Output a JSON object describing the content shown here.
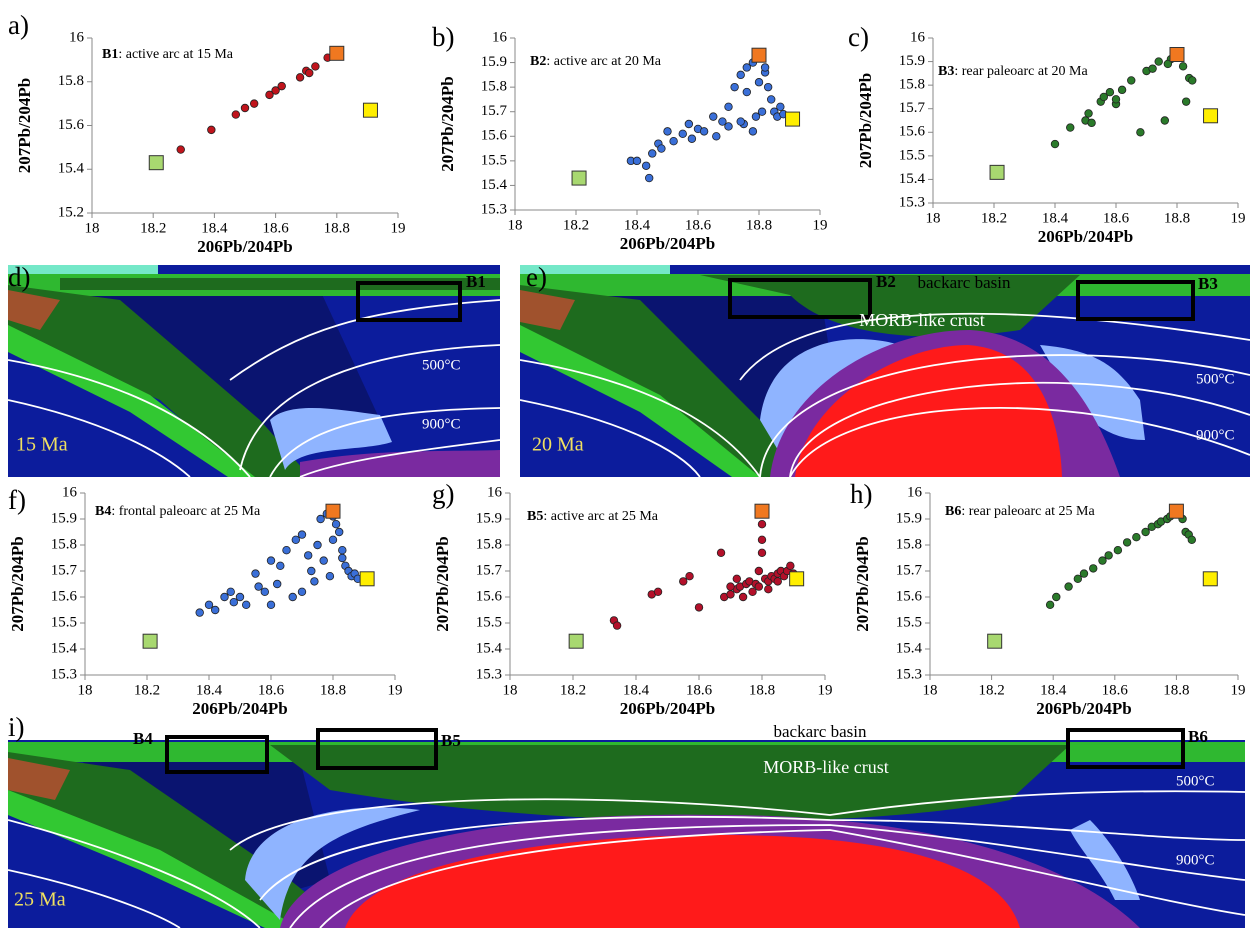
{
  "chart_data": [
    {
      "type": "scatter",
      "panel": "a)",
      "annotation": {
        "bold": "B1",
        "text": ": active arc at 15 Ma"
      },
      "x_label": "206Pb/204Pb",
      "y_label": "207Pb/204Pb",
      "xlim": [
        18,
        19
      ],
      "xticks": [
        18,
        18.2,
        18.4,
        18.6,
        18.8,
        19
      ],
      "ylim": [
        15.2,
        16
      ],
      "yticks": [
        15.2,
        15.4,
        15.6,
        15.8,
        16
      ],
      "series": [
        {
          "color": "#c0141c",
          "marker": "circle",
          "x": [
            18.29,
            18.39,
            18.47,
            18.5,
            18.53,
            18.58,
            18.6,
            18.62,
            18.68,
            18.7,
            18.71,
            18.73,
            18.77,
            18.79
          ],
          "values": [
            15.49,
            15.58,
            15.65,
            15.68,
            15.7,
            15.74,
            15.76,
            15.78,
            15.82,
            15.85,
            15.84,
            15.87,
            15.91,
            15.93
          ]
        },
        {
          "color": "#a8d870",
          "marker": "square",
          "x": [
            18.21
          ],
          "values": [
            15.43
          ]
        },
        {
          "color": "#ffee00",
          "marker": "square",
          "x": [
            18.91
          ],
          "values": [
            15.67
          ]
        },
        {
          "color": "#f07820",
          "marker": "square",
          "x": [
            18.8
          ],
          "values": [
            15.93
          ]
        }
      ]
    },
    {
      "type": "scatter",
      "panel": "b)",
      "annotation": {
        "bold": "B2",
        "text": ": active arc at 20 Ma"
      },
      "x_label": "206Pb/204Pb",
      "y_label": "207Pb/204Pb",
      "xlim": [
        18,
        19
      ],
      "xticks": [
        18,
        18.2,
        18.4,
        18.6,
        18.8,
        19
      ],
      "ylim": [
        15.3,
        16
      ],
      "yticks": [
        15.3,
        15.4,
        15.5,
        15.6,
        15.7,
        15.8,
        15.9,
        16
      ],
      "series": [
        {
          "color": "#3a6fd8",
          "marker": "circle",
          "x": [
            18.38,
            18.4,
            18.43,
            18.44,
            18.45,
            18.47,
            18.5,
            18.52,
            18.55,
            18.57,
            18.6,
            18.62,
            18.65,
            18.68,
            18.7,
            18.72,
            18.74,
            18.75,
            18.76,
            18.78,
            18.79,
            18.8,
            18.81,
            18.82,
            18.83,
            18.84,
            18.85,
            18.86,
            18.87,
            18.88,
            18.9,
            18.78,
            18.76,
            18.74,
            18.82,
            18.8,
            18.7,
            18.66,
            18.58,
            18.48
          ],
          "values": [
            15.5,
            15.5,
            15.48,
            15.43,
            15.53,
            15.57,
            15.62,
            15.58,
            15.61,
            15.65,
            15.63,
            15.62,
            15.68,
            15.66,
            15.72,
            15.8,
            15.85,
            15.65,
            15.88,
            15.9,
            15.68,
            15.92,
            15.7,
            15.86,
            15.8,
            15.75,
            15.7,
            15.68,
            15.72,
            15.69,
            15.68,
            15.62,
            15.78,
            15.66,
            15.88,
            15.82,
            15.64,
            15.6,
            15.59,
            15.55
          ]
        },
        {
          "color": "#a8d870",
          "marker": "square",
          "x": [
            18.21
          ],
          "values": [
            15.43
          ]
        },
        {
          "color": "#ffee00",
          "marker": "square",
          "x": [
            18.91
          ],
          "values": [
            15.67
          ]
        },
        {
          "color": "#f07820",
          "marker": "square",
          "x": [
            18.8
          ],
          "values": [
            15.93
          ]
        }
      ]
    },
    {
      "type": "scatter",
      "panel": "c)",
      "annotation": {
        "bold": "B3",
        "text": ": rear paleoarc at 20 Ma"
      },
      "x_label": "206Pb/204Pb",
      "y_label": "207Pb/204Pb",
      "xlim": [
        18,
        19
      ],
      "xticks": [
        18,
        18.2,
        18.4,
        18.6,
        18.8,
        19
      ],
      "ylim": [
        15.3,
        16
      ],
      "yticks": [
        15.3,
        15.4,
        15.5,
        15.6,
        15.7,
        15.8,
        15.9,
        16
      ],
      "series": [
        {
          "color": "#2a7a2a",
          "marker": "circle",
          "x": [
            18.4,
            18.45,
            18.5,
            18.51,
            18.52,
            18.55,
            18.56,
            18.58,
            18.6,
            18.62,
            18.65,
            18.68,
            18.7,
            18.72,
            18.74,
            18.76,
            18.78,
            18.8,
            18.81,
            18.82,
            18.84,
            18.85,
            18.77,
            18.83,
            18.6
          ],
          "values": [
            15.55,
            15.62,
            15.65,
            15.68,
            15.64,
            15.73,
            15.75,
            15.77,
            15.72,
            15.78,
            15.82,
            15.6,
            15.86,
            15.87,
            15.9,
            15.65,
            15.91,
            15.93,
            15.92,
            15.88,
            15.83,
            15.82,
            15.89,
            15.73,
            15.74
          ]
        },
        {
          "color": "#a8d870",
          "marker": "square",
          "x": [
            18.21
          ],
          "values": [
            15.43
          ]
        },
        {
          "color": "#ffee00",
          "marker": "square",
          "x": [
            18.91
          ],
          "values": [
            15.67
          ]
        },
        {
          "color": "#f07820",
          "marker": "square",
          "x": [
            18.8
          ],
          "values": [
            15.93
          ]
        }
      ]
    },
    {
      "type": "scatter",
      "panel": "f)",
      "annotation": {
        "bold": "B4",
        "text": ": frontal paleoarc at 25  Ma"
      },
      "x_label": "206Pb/204Pb",
      "y_label": "207Pb/204Pb",
      "xlim": [
        18,
        19
      ],
      "xticks": [
        18,
        18.2,
        18.4,
        18.6,
        18.8,
        19
      ],
      "ylim": [
        15.3,
        16
      ],
      "yticks": [
        15.3,
        15.4,
        15.5,
        15.6,
        15.7,
        15.8,
        15.9,
        16
      ],
      "series": [
        {
          "color": "#3a6fd8",
          "marker": "circle",
          "x": [
            18.37,
            18.4,
            18.42,
            18.45,
            18.47,
            18.48,
            18.5,
            18.52,
            18.55,
            18.58,
            18.6,
            18.62,
            18.63,
            18.65,
            18.68,
            18.7,
            18.7,
            18.72,
            18.74,
            18.75,
            18.76,
            18.78,
            18.79,
            18.8,
            18.81,
            18.82,
            18.83,
            18.84,
            18.85,
            18.86,
            18.87,
            18.88,
            18.9,
            18.77,
            18.73,
            18.67,
            18.6,
            18.56,
            18.8,
            18.83
          ],
          "values": [
            15.54,
            15.57,
            15.55,
            15.6,
            15.62,
            15.58,
            15.6,
            15.57,
            15.69,
            15.62,
            15.74,
            15.65,
            15.72,
            15.78,
            15.82,
            15.62,
            15.84,
            15.76,
            15.66,
            15.8,
            15.9,
            15.92,
            15.68,
            15.91,
            15.88,
            15.85,
            15.78,
            15.72,
            15.7,
            15.68,
            15.69,
            15.67,
            15.66,
            15.74,
            15.7,
            15.6,
            15.57,
            15.64,
            15.82,
            15.75
          ]
        },
        {
          "color": "#a8d870",
          "marker": "square",
          "x": [
            18.21
          ],
          "values": [
            15.43
          ]
        },
        {
          "color": "#ffee00",
          "marker": "square",
          "x": [
            18.91
          ],
          "values": [
            15.67
          ]
        },
        {
          "color": "#f07820",
          "marker": "square",
          "x": [
            18.8
          ],
          "values": [
            15.93
          ]
        }
      ]
    },
    {
      "type": "scatter",
      "panel": "g)",
      "annotation": {
        "bold": "B5",
        "text": ": active arc at 25 Ma"
      },
      "x_label": "206Pb/204Pb",
      "y_label": "207Pb/204Pb",
      "xlim": [
        18,
        19
      ],
      "xticks": [
        18,
        18.2,
        18.4,
        18.6,
        18.8,
        19
      ],
      "ylim": [
        15.3,
        16
      ],
      "yticks": [
        15.3,
        15.4,
        15.5,
        15.6,
        15.7,
        15.8,
        15.9,
        16
      ],
      "series": [
        {
          "color": "#b3102a",
          "marker": "circle",
          "x": [
            18.33,
            18.34,
            18.45,
            18.47,
            18.55,
            18.57,
            18.6,
            18.67,
            18.68,
            18.7,
            18.72,
            18.73,
            18.75,
            18.76,
            18.78,
            18.79,
            18.8,
            18.8,
            18.8,
            18.81,
            18.82,
            18.83,
            18.84,
            18.85,
            18.86,
            18.87,
            18.88,
            18.89,
            18.9,
            18.74,
            18.77,
            18.79,
            18.82,
            18.85,
            18.72,
            18.7,
            18.8
          ],
          "values": [
            15.51,
            15.49,
            15.61,
            15.62,
            15.66,
            15.68,
            15.56,
            15.77,
            15.6,
            15.61,
            15.63,
            15.64,
            15.65,
            15.66,
            15.65,
            15.7,
            15.92,
            15.88,
            15.82,
            15.67,
            15.66,
            15.68,
            15.67,
            15.69,
            15.7,
            15.68,
            15.7,
            15.72,
            15.69,
            15.6,
            15.62,
            15.64,
            15.63,
            15.66,
            15.67,
            15.64,
            15.77
          ]
        },
        {
          "color": "#a8d870",
          "marker": "square",
          "x": [
            18.21
          ],
          "values": [
            15.43
          ]
        },
        {
          "color": "#ffee00",
          "marker": "square",
          "x": [
            18.91
          ],
          "values": [
            15.67
          ]
        },
        {
          "color": "#f07820",
          "marker": "square",
          "x": [
            18.8
          ],
          "values": [
            15.93
          ]
        }
      ]
    },
    {
      "type": "scatter",
      "panel": "h)",
      "annotation": {
        "bold": "B6",
        "text": ": rear paleoarc at 25 Ma"
      },
      "x_label": "206Pb/204Pb",
      "y_label": "207Pb/204Pb",
      "xlim": [
        18,
        19
      ],
      "xticks": [
        18,
        18.2,
        18.4,
        18.6,
        18.8,
        19
      ],
      "ylim": [
        15.3,
        16
      ],
      "yticks": [
        15.3,
        15.4,
        15.5,
        15.6,
        15.7,
        15.8,
        15.9,
        16
      ],
      "series": [
        {
          "color": "#2a7a2a",
          "marker": "circle",
          "x": [
            18.39,
            18.41,
            18.45,
            18.48,
            18.5,
            18.53,
            18.56,
            18.58,
            18.61,
            18.64,
            18.67,
            18.7,
            18.72,
            18.74,
            18.75,
            18.77,
            18.78,
            18.79,
            18.8,
            18.82,
            18.83,
            18.84,
            18.85
          ],
          "values": [
            15.57,
            15.6,
            15.64,
            15.67,
            15.69,
            15.71,
            15.74,
            15.76,
            15.78,
            15.81,
            15.83,
            15.85,
            15.87,
            15.88,
            15.89,
            15.9,
            15.91,
            15.92,
            15.93,
            15.9,
            15.85,
            15.84,
            15.82
          ]
        },
        {
          "color": "#a8d870",
          "marker": "square",
          "x": [
            18.21
          ],
          "values": [
            15.43
          ]
        },
        {
          "color": "#ffee00",
          "marker": "square",
          "x": [
            18.91
          ],
          "values": [
            15.67
          ]
        },
        {
          "color": "#f07820",
          "marker": "square",
          "x": [
            18.8
          ],
          "values": [
            15.93
          ]
        }
      ]
    }
  ],
  "model_panels": [
    {
      "label": "d)",
      "boxes": [
        "B1"
      ],
      "isotherms": [
        "500°C",
        "900°C"
      ],
      "age": "15 Ma"
    },
    {
      "label": "e)",
      "boxes": [
        "B2",
        "B3"
      ],
      "region": "backarc basin",
      "crust": "MORB-like crust",
      "isotherms": [
        "500°C",
        "900°C"
      ],
      "age": "20 Ma"
    },
    {
      "label": "i)",
      "boxes": [
        "B4",
        "B5",
        "B6"
      ],
      "region": "backarc basin",
      "crust": "MORB-like crust",
      "isotherms": [
        "500°C",
        "900°C"
      ],
      "age": "25 Ma"
    }
  ]
}
